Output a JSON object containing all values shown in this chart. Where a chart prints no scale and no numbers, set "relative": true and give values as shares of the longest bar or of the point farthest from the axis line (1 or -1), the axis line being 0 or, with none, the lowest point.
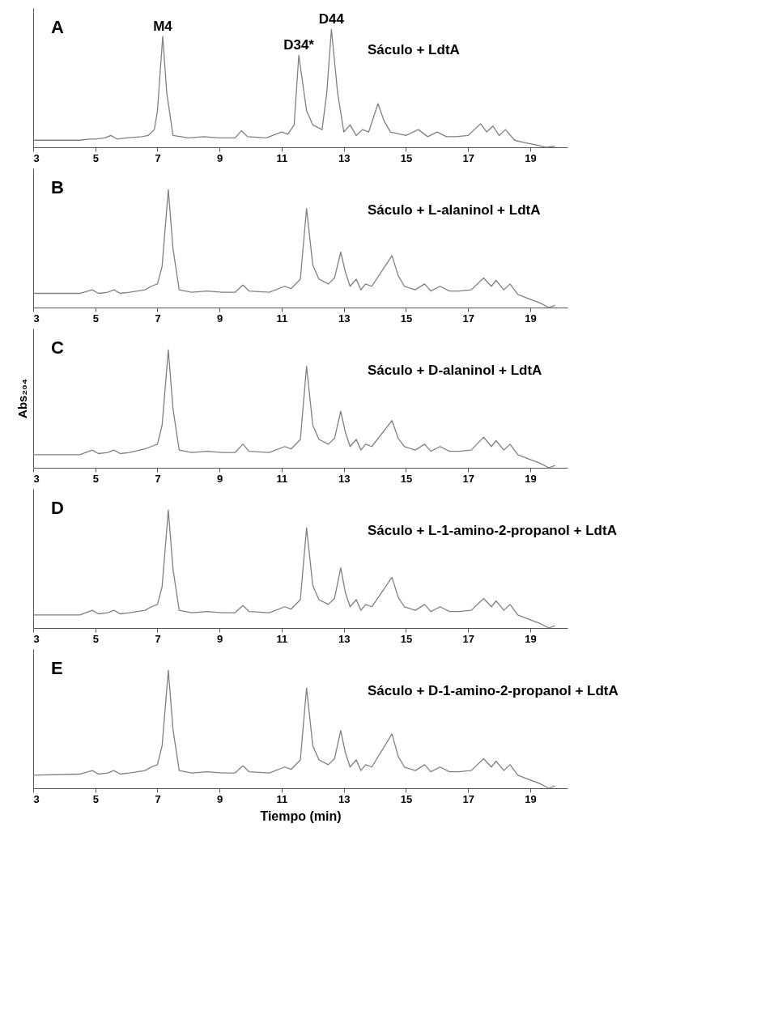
{
  "chart_data": [
    {
      "type": "line",
      "relative": true,
      "xlim": [
        3,
        20.2
      ],
      "xticks": [
        3,
        5,
        7,
        9,
        11,
        13,
        15,
        17,
        19
      ],
      "grid": false,
      "marker": "none",
      "line_style": "solid",
      "x": [
        3.0,
        4.5,
        4.8,
        5.0,
        5.3,
        5.5,
        5.7,
        6.0,
        6.5,
        6.7,
        6.9,
        7.0,
        7.17,
        7.3,
        7.5,
        8.0,
        8.5,
        9.0,
        9.5,
        9.7,
        9.9,
        10.5,
        11.0,
        11.2,
        11.4,
        11.55,
        11.8,
        12.0,
        12.3,
        12.45,
        12.6,
        12.8,
        13.0,
        13.2,
        13.4,
        13.6,
        13.8,
        14.1,
        14.3,
        14.5,
        15.0,
        15.4,
        15.7,
        16.0,
        16.3,
        16.6,
        17.0,
        17.4,
        17.6,
        17.8,
        18.0,
        18.2,
        18.5,
        18.8,
        19.2,
        19.5,
        19.8
      ],
      "series": [
        {
          "color": "#808080",
          "values": [
            0.06,
            0.06,
            0.07,
            0.07,
            0.08,
            0.1,
            0.07,
            0.08,
            0.09,
            0.1,
            0.15,
            0.31,
            0.94,
            0.46,
            0.1,
            0.08,
            0.09,
            0.08,
            0.08,
            0.14,
            0.09,
            0.08,
            0.13,
            0.11,
            0.19,
            0.78,
            0.31,
            0.19,
            0.15,
            0.46,
            1.0,
            0.46,
            0.13,
            0.19,
            0.1,
            0.15,
            0.13,
            0.37,
            0.22,
            0.13,
            0.1,
            0.15,
            0.09,
            0.13,
            0.09,
            0.09,
            0.1,
            0.2,
            0.13,
            0.18,
            0.1,
            0.15,
            0.06,
            0.04,
            0.02,
            0,
            0.01
          ]
        }
      ],
      "annotations": [
        "A",
        "Sáculo + LdtA",
        {
          "text": "M4",
          "x": 7.17,
          "y": 0.94
        },
        {
          "text": "D34*",
          "x": 11.55,
          "y": 0.78
        },
        {
          "text": "D44",
          "x": 12.6,
          "y": 1.0
        }
      ]
    },
    {
      "type": "line",
      "relative": true,
      "xlim": [
        3,
        20.2
      ],
      "xticks": [
        3,
        5,
        7,
        9,
        11,
        13,
        15,
        17,
        19
      ],
      "grid": false,
      "marker": "none",
      "line_style": "solid",
      "x": [
        3.0,
        4.5,
        4.9,
        5.1,
        5.4,
        5.6,
        5.8,
        6.1,
        6.6,
        6.8,
        7.0,
        7.15,
        7.35,
        7.5,
        7.7,
        8.1,
        8.6,
        9.1,
        9.5,
        9.75,
        9.95,
        10.6,
        11.1,
        11.3,
        11.6,
        11.8,
        12.0,
        12.2,
        12.5,
        12.7,
        12.9,
        13.05,
        13.2,
        13.4,
        13.55,
        13.7,
        13.9,
        14.55,
        14.75,
        14.95,
        15.3,
        15.6,
        15.8,
        16.1,
        16.4,
        16.7,
        17.1,
        17.5,
        17.75,
        17.9,
        18.15,
        18.35,
        18.6,
        18.9,
        19.3,
        19.6,
        19.8
      ],
      "series": [
        {
          "color": "#808080",
          "values": [
            0.12,
            0.12,
            0.15,
            0.12,
            0.13,
            0.15,
            0.12,
            0.13,
            0.15,
            0.18,
            0.2,
            0.35,
            1.0,
            0.5,
            0.15,
            0.13,
            0.14,
            0.13,
            0.13,
            0.19,
            0.14,
            0.13,
            0.18,
            0.16,
            0.24,
            0.84,
            0.36,
            0.24,
            0.2,
            0.25,
            0.47,
            0.3,
            0.18,
            0.24,
            0.15,
            0.2,
            0.18,
            0.44,
            0.27,
            0.18,
            0.15,
            0.2,
            0.14,
            0.18,
            0.14,
            0.14,
            0.15,
            0.25,
            0.18,
            0.23,
            0.15,
            0.2,
            0.11,
            0.08,
            0.04,
            0,
            0.02
          ]
        }
      ],
      "annotations": [
        "B",
        "Sáculo + L-alaninol + LdtA"
      ]
    },
    {
      "type": "line",
      "relative": true,
      "xlim": [
        3,
        20.2
      ],
      "xticks": [
        3,
        5,
        7,
        9,
        11,
        13,
        15,
        17,
        19
      ],
      "grid": false,
      "marker": "none",
      "line_style": "solid",
      "ylabel": "Abs₂₀₄",
      "x": [
        3.0,
        4.5,
        4.9,
        5.1,
        5.4,
        5.6,
        5.8,
        6.1,
        6.6,
        6.8,
        7.0,
        7.15,
        7.35,
        7.5,
        7.7,
        8.1,
        8.6,
        9.1,
        9.5,
        9.75,
        9.95,
        10.6,
        11.1,
        11.3,
        11.6,
        11.8,
        12.0,
        12.2,
        12.5,
        12.7,
        12.9,
        13.05,
        13.2,
        13.4,
        13.55,
        13.7,
        13.9,
        14.55,
        14.75,
        14.95,
        15.3,
        15.6,
        15.8,
        16.1,
        16.4,
        16.7,
        17.1,
        17.5,
        17.75,
        17.9,
        18.15,
        18.35,
        18.6,
        18.9,
        19.3,
        19.6,
        19.8
      ],
      "series": [
        {
          "color": "#808080",
          "values": [
            0.11,
            0.11,
            0.15,
            0.12,
            0.13,
            0.15,
            0.12,
            0.13,
            0.16,
            0.18,
            0.2,
            0.36,
            1.0,
            0.5,
            0.15,
            0.13,
            0.14,
            0.13,
            0.13,
            0.2,
            0.14,
            0.13,
            0.18,
            0.16,
            0.24,
            0.86,
            0.36,
            0.24,
            0.2,
            0.25,
            0.48,
            0.3,
            0.18,
            0.24,
            0.15,
            0.2,
            0.18,
            0.4,
            0.25,
            0.18,
            0.15,
            0.2,
            0.14,
            0.18,
            0.14,
            0.14,
            0.15,
            0.26,
            0.18,
            0.23,
            0.15,
            0.2,
            0.11,
            0.08,
            0.04,
            0,
            0.02
          ]
        }
      ],
      "annotations": [
        "C",
        "Sáculo + D-alaninol + LdtA"
      ]
    },
    {
      "type": "line",
      "relative": true,
      "xlim": [
        3,
        20.2
      ],
      "xticks": [
        3,
        5,
        7,
        9,
        11,
        13,
        15,
        17,
        19
      ],
      "grid": false,
      "marker": "none",
      "line_style": "solid",
      "x": [
        3.0,
        4.5,
        4.9,
        5.1,
        5.4,
        5.6,
        5.8,
        6.1,
        6.6,
        6.8,
        7.0,
        7.15,
        7.35,
        7.5,
        7.7,
        8.1,
        8.6,
        9.1,
        9.5,
        9.75,
        9.95,
        10.6,
        11.1,
        11.3,
        11.6,
        11.8,
        12.0,
        12.2,
        12.5,
        12.7,
        12.9,
        13.05,
        13.2,
        13.4,
        13.55,
        13.7,
        13.9,
        14.55,
        14.75,
        14.95,
        15.3,
        15.6,
        15.8,
        16.1,
        16.4,
        16.7,
        17.1,
        17.5,
        17.75,
        17.9,
        18.15,
        18.35,
        18.6,
        18.9,
        19.3,
        19.6,
        19.8
      ],
      "series": [
        {
          "color": "#808080",
          "values": [
            0.11,
            0.11,
            0.15,
            0.12,
            0.13,
            0.15,
            0.12,
            0.13,
            0.15,
            0.18,
            0.2,
            0.35,
            1.0,
            0.5,
            0.15,
            0.13,
            0.14,
            0.13,
            0.13,
            0.19,
            0.14,
            0.13,
            0.18,
            0.16,
            0.24,
            0.85,
            0.36,
            0.24,
            0.2,
            0.25,
            0.51,
            0.3,
            0.18,
            0.24,
            0.15,
            0.2,
            0.18,
            0.43,
            0.26,
            0.18,
            0.15,
            0.2,
            0.14,
            0.18,
            0.14,
            0.14,
            0.15,
            0.25,
            0.18,
            0.23,
            0.15,
            0.2,
            0.11,
            0.08,
            0.04,
            0,
            0.02
          ]
        }
      ],
      "annotations": [
        "D",
        "Sáculo + L-1-amino-2-propanol + LdtA"
      ]
    },
    {
      "type": "line",
      "relative": true,
      "xlim": [
        3,
        20.2
      ],
      "xticks": [
        3,
        5,
        7,
        9,
        11,
        13,
        15,
        17,
        19
      ],
      "grid": false,
      "marker": "none",
      "line_style": "solid",
      "xlabel": "Tiempo (min)",
      "x": [
        3.0,
        4.5,
        4.9,
        5.1,
        5.4,
        5.6,
        5.8,
        6.1,
        6.6,
        6.8,
        7.0,
        7.15,
        7.35,
        7.5,
        7.7,
        8.1,
        8.6,
        9.1,
        9.5,
        9.75,
        9.95,
        10.6,
        11.1,
        11.3,
        11.6,
        11.8,
        12.0,
        12.2,
        12.5,
        12.7,
        12.9,
        13.05,
        13.2,
        13.4,
        13.55,
        13.7,
        13.9,
        14.55,
        14.75,
        14.95,
        15.3,
        15.6,
        15.8,
        16.1,
        16.4,
        16.7,
        17.1,
        17.5,
        17.75,
        17.9,
        18.15,
        18.35,
        18.6,
        18.9,
        19.3,
        19.6,
        19.8
      ],
      "series": [
        {
          "color": "#808080",
          "values": [
            0.11,
            0.12,
            0.15,
            0.12,
            0.13,
            0.15,
            0.12,
            0.13,
            0.15,
            0.18,
            0.2,
            0.36,
            1.0,
            0.5,
            0.15,
            0.13,
            0.14,
            0.13,
            0.13,
            0.19,
            0.14,
            0.13,
            0.18,
            0.16,
            0.24,
            0.85,
            0.36,
            0.24,
            0.2,
            0.25,
            0.49,
            0.3,
            0.18,
            0.24,
            0.15,
            0.2,
            0.18,
            0.46,
            0.27,
            0.18,
            0.15,
            0.2,
            0.14,
            0.18,
            0.14,
            0.14,
            0.15,
            0.25,
            0.18,
            0.23,
            0.15,
            0.2,
            0.11,
            0.08,
            0.04,
            0,
            0.02
          ]
        }
      ],
      "annotations": [
        "E",
        "Sáculo + D-1-amino-2-propanol + LdtA"
      ]
    }
  ]
}
